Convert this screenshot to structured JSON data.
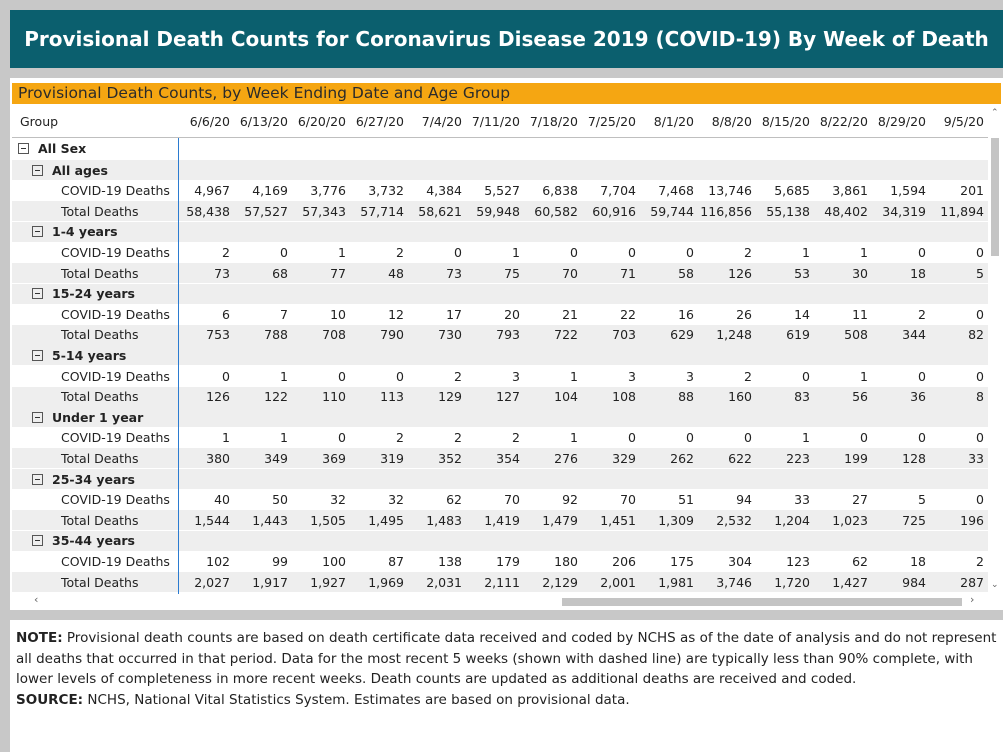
{
  "title": "Provisional Death Counts for Coronavirus Disease 2019 (COVID-19) By Week of Death",
  "subtitle": "Provisional Death Counts, by Week Ending Date and Age Group",
  "table": {
    "group_header": "Group",
    "columns": [
      "6/6/20",
      "6/13/20",
      "6/20/20",
      "6/27/20",
      "7/4/20",
      "7/11/20",
      "7/18/20",
      "7/25/20",
      "8/1/20",
      "8/8/20",
      "8/15/20",
      "8/22/20",
      "8/29/20",
      "9/5/20"
    ],
    "root_label": "All Sex",
    "groups": [
      {
        "label": "All ages",
        "rows": [
          {
            "label": "COVID-19 Deaths",
            "values": [
              "4,967",
              "4,169",
              "3,776",
              "3,732",
              "4,384",
              "5,527",
              "6,838",
              "7,704",
              "7,468",
              "13,746",
              "5,685",
              "3,861",
              "1,594",
              "201"
            ]
          },
          {
            "label": "Total Deaths",
            "values": [
              "58,438",
              "57,527",
              "57,343",
              "57,714",
              "58,621",
              "59,948",
              "60,582",
              "60,916",
              "59,744",
              "116,856",
              "55,138",
              "48,402",
              "34,319",
              "11,894"
            ]
          }
        ]
      },
      {
        "label": "1-4 years",
        "rows": [
          {
            "label": "COVID-19 Deaths",
            "values": [
              "2",
              "0",
              "1",
              "2",
              "0",
              "1",
              "0",
              "0",
              "0",
              "2",
              "1",
              "1",
              "0",
              "0"
            ]
          },
          {
            "label": "Total Deaths",
            "values": [
              "73",
              "68",
              "77",
              "48",
              "73",
              "75",
              "70",
              "71",
              "58",
              "126",
              "53",
              "30",
              "18",
              "5"
            ]
          }
        ]
      },
      {
        "label": "15-24 years",
        "rows": [
          {
            "label": "COVID-19 Deaths",
            "values": [
              "6",
              "7",
              "10",
              "12",
              "17",
              "20",
              "21",
              "22",
              "16",
              "26",
              "14",
              "11",
              "2",
              "0"
            ]
          },
          {
            "label": "Total Deaths",
            "values": [
              "753",
              "788",
              "708",
              "790",
              "730",
              "793",
              "722",
              "703",
              "629",
              "1,248",
              "619",
              "508",
              "344",
              "82"
            ]
          }
        ]
      },
      {
        "label": "5-14 years",
        "rows": [
          {
            "label": "COVID-19 Deaths",
            "values": [
              "0",
              "1",
              "0",
              "0",
              "2",
              "3",
              "1",
              "3",
              "3",
              "2",
              "0",
              "1",
              "0",
              "0"
            ]
          },
          {
            "label": "Total Deaths",
            "values": [
              "126",
              "122",
              "110",
              "113",
              "129",
              "127",
              "104",
              "108",
              "88",
              "160",
              "83",
              "56",
              "36",
              "8"
            ]
          }
        ]
      },
      {
        "label": "Under 1 year",
        "rows": [
          {
            "label": "COVID-19 Deaths",
            "values": [
              "1",
              "1",
              "0",
              "2",
              "2",
              "2",
              "1",
              "0",
              "0",
              "0",
              "1",
              "0",
              "0",
              "0"
            ]
          },
          {
            "label": "Total Deaths",
            "values": [
              "380",
              "349",
              "369",
              "319",
              "352",
              "354",
              "276",
              "329",
              "262",
              "622",
              "223",
              "199",
              "128",
              "33"
            ]
          }
        ]
      },
      {
        "label": "25-34 years",
        "rows": [
          {
            "label": "COVID-19 Deaths",
            "values": [
              "40",
              "50",
              "32",
              "32",
              "62",
              "70",
              "92",
              "70",
              "51",
              "94",
              "33",
              "27",
              "5",
              "0"
            ]
          },
          {
            "label": "Total Deaths",
            "values": [
              "1,544",
              "1,443",
              "1,505",
              "1,495",
              "1,483",
              "1,419",
              "1,479",
              "1,451",
              "1,309",
              "2,532",
              "1,204",
              "1,023",
              "725",
              "196"
            ]
          }
        ]
      },
      {
        "label": "35-44 years",
        "rows": [
          {
            "label": "COVID-19 Deaths",
            "values": [
              "102",
              "99",
              "100",
              "87",
              "138",
              "179",
              "180",
              "206",
              "175",
              "304",
              "123",
              "62",
              "18",
              "2"
            ]
          },
          {
            "label": "Total Deaths",
            "values": [
              "2,027",
              "1,917",
              "1,927",
              "1,969",
              "2,031",
              "2,111",
              "2,129",
              "2,001",
              "1,981",
              "3,746",
              "1,720",
              "1,427",
              "984",
              "287"
            ]
          }
        ]
      }
    ]
  },
  "note": {
    "note_label": "NOTE:",
    "note_text": "Provisional death counts are based on death certificate data received and coded by NCHS as of the date of analysis and do not represent all deaths that occurred in that period. Data for the most recent 5 weeks (shown with dashed line) are typically less than 90% complete, with lower levels of completeness in more recent weeks.  Death counts are updated as additional deaths are received and coded.",
    "source_label": "SOURCE:",
    "source_text": "NCHS, National Vital Statistics System. Estimates are based on provisional data."
  }
}
